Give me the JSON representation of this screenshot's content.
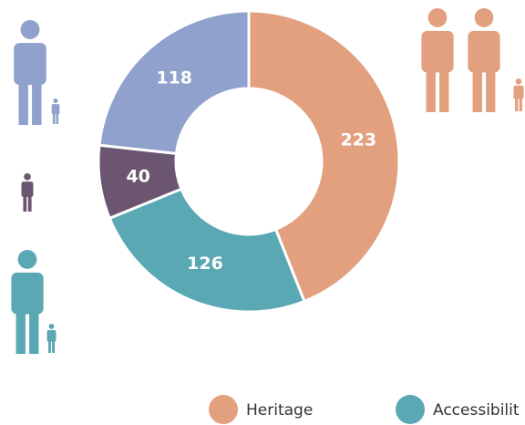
{
  "chart_data": {
    "type": "donut",
    "categories": [
      "Heritage",
      "Accessibilit",
      null,
      null
    ],
    "values": [
      223,
      126,
      40,
      118
    ],
    "colors": [
      "#e3a07f",
      "#5aa8b4",
      "#6b5570",
      "#8fa1cc"
    ]
  }
}
